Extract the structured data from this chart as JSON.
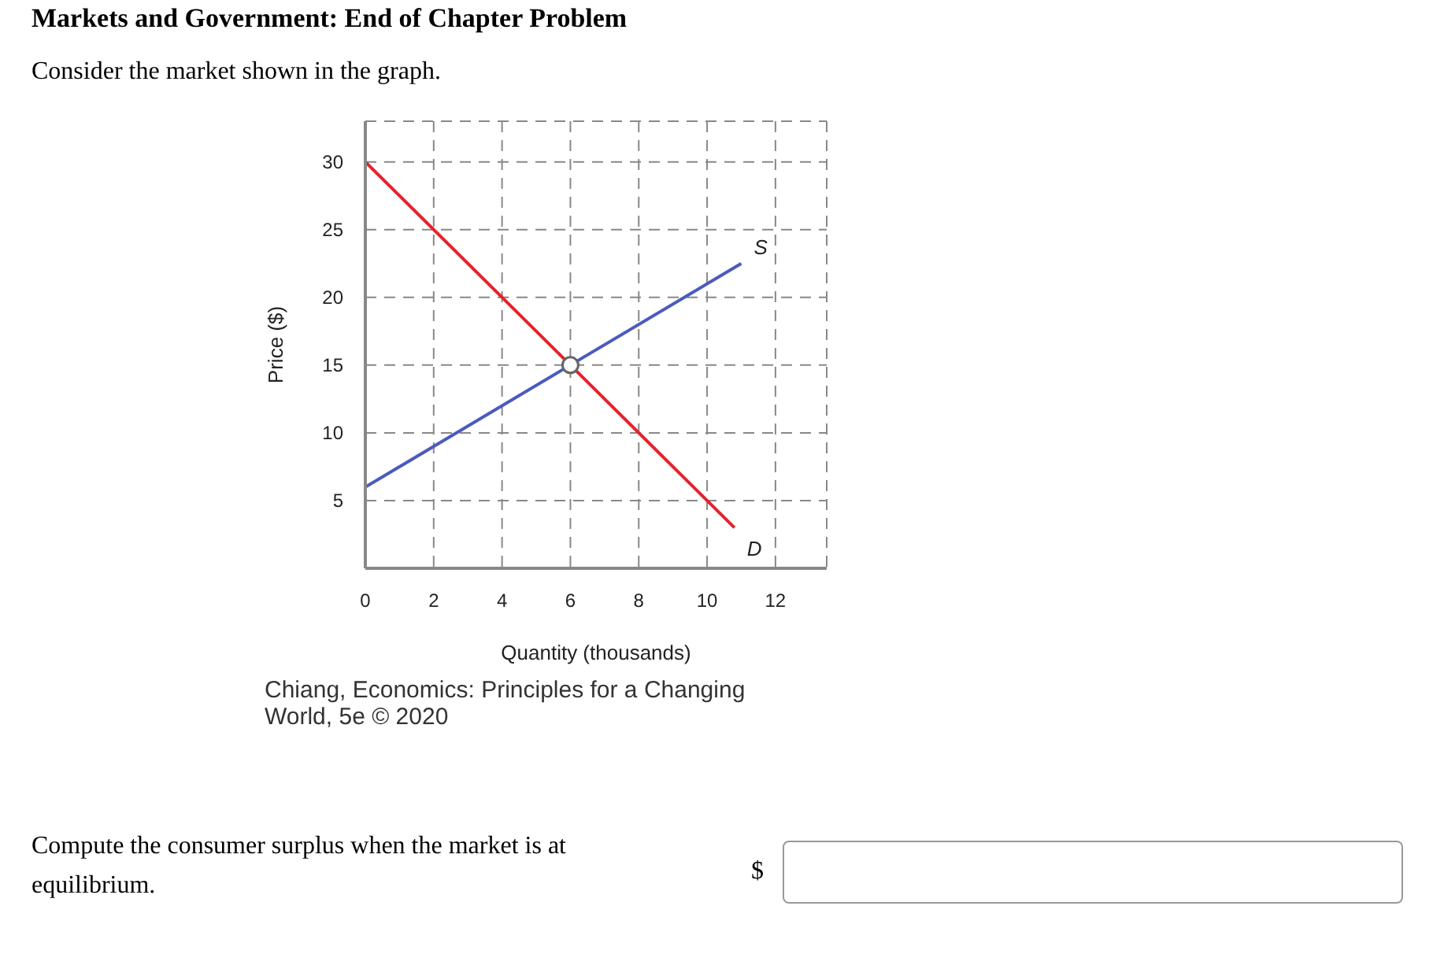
{
  "chart_data": {
    "type": "line",
    "title": "Markets and Government: End of Chapter Problem",
    "subtitle": "Consider the market shown in the graph.",
    "xlabel": "Quantity (thousands)",
    "ylabel": "Price ($)",
    "series": [
      {
        "name": "D",
        "color": "#e8202a",
        "x": [
          0,
          10.8
        ],
        "values": [
          30,
          3
        ]
      },
      {
        "name": "S",
        "color": "#4a5bbd",
        "x": [
          0,
          11
        ],
        "values": [
          6,
          22.5
        ]
      },
      {
        "type": "scatter",
        "color": "#666666",
        "marker": "circle",
        "x": [
          6
        ],
        "values": [
          15
        ]
      }
    ],
    "xlim": [
      0,
      13.5
    ],
    "ylim": [
      0,
      33
    ],
    "xticks": [
      0,
      2,
      4,
      6,
      8,
      10,
      12
    ],
    "yticks": [
      5,
      10,
      15,
      20,
      25,
      30
    ],
    "grid": true,
    "annotations": [
      "Chiang, Economics: Principles for a Changing World, 5e © 2020",
      "Compute the consumer surplus when the market is at equilibrium.",
      "$"
    ]
  }
}
